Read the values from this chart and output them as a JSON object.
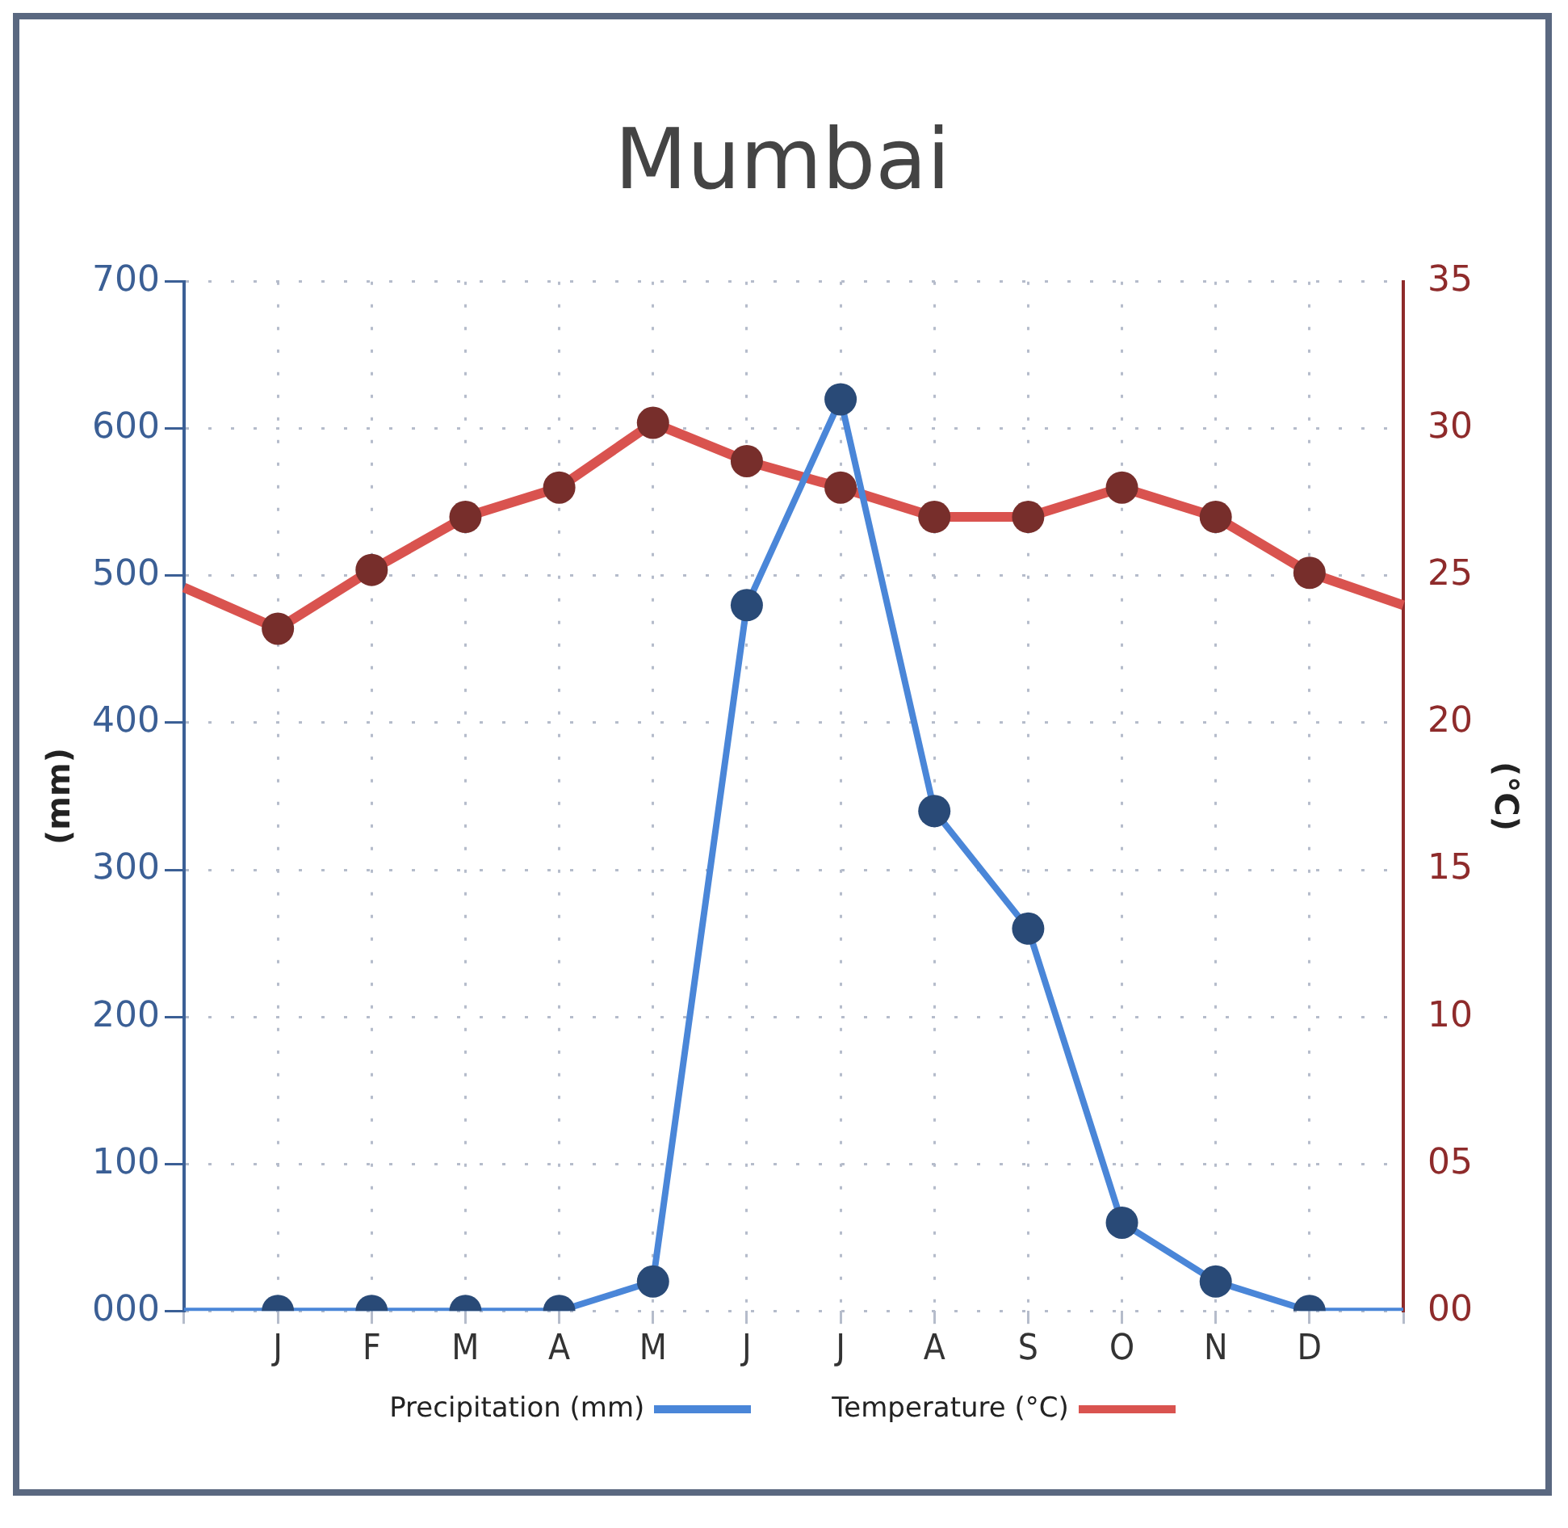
{
  "chart_data": {
    "type": "line",
    "title": "Mumbai",
    "ylabel": "(mm)",
    "y2label": "(°C)",
    "categories": [
      null,
      "J",
      "F",
      "M",
      "A",
      "M",
      "J",
      "J",
      "A",
      "S",
      "O",
      "N",
      "D",
      null
    ],
    "series": [
      {
        "name": "Precipitation (mm)",
        "color": "#4a86d8",
        "values": [
          0,
          0,
          0,
          0,
          0,
          20,
          480,
          620,
          340,
          260,
          60,
          20,
          0,
          0
        ],
        "marker": "circle"
      },
      {
        "name": "Temperature (°C)",
        "type": "line",
        "axis": "y2",
        "color": "#d9534f",
        "values": [
          24.6,
          23.2,
          25.2,
          27,
          28,
          30.2,
          28.9,
          28,
          27,
          27,
          28,
          27,
          25.1,
          24
        ]
      }
    ],
    "ylim": [
      0,
      700
    ],
    "yticks": [
      {
        "value": 0,
        "label": "000"
      },
      100,
      200,
      300,
      400,
      500,
      600,
      700
    ],
    "y2lim": [
      0,
      35
    ],
    "y2ticks": [
      {
        "value": 0,
        "label": "00"
      },
      {
        "value": 5,
        "label": "05"
      },
      10,
      15,
      20,
      25,
      30,
      35
    ],
    "grid": true,
    "line_style": "solid",
    "marker": "circle",
    "legend": "bottom"
  }
}
